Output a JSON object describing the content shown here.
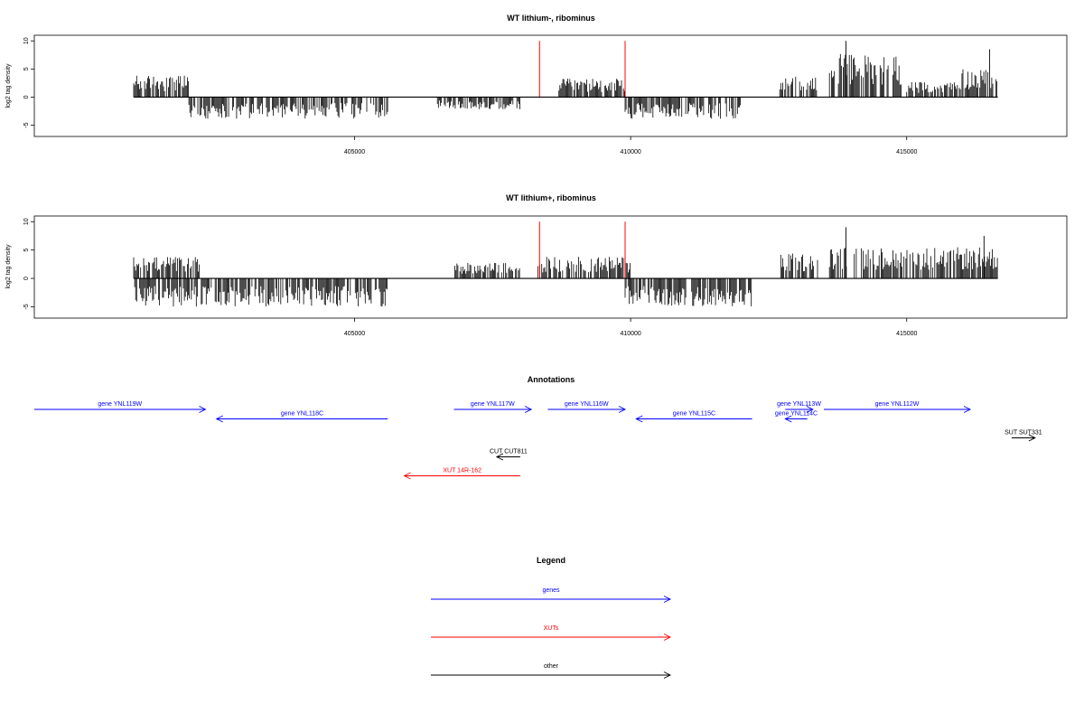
{
  "x_axis": {
    "min": 399200,
    "max": 417900,
    "ticks": [
      405000,
      410000,
      415000
    ],
    "tick_labels": [
      "405000",
      "410000",
      "415000"
    ]
  },
  "chart_data": [
    {
      "type": "bar",
      "title": "WT lithium-, ribominus",
      "ylabel": "log2 tag density",
      "ylim": [
        -7,
        11
      ],
      "yticks": [
        -5,
        0,
        5,
        10
      ],
      "ytick_labels": [
        "-5",
        "0",
        "5",
        "10"
      ],
      "data_range": [
        401000,
        416650
      ],
      "markers": [
        {
          "x": 408350,
          "color": "#ff0000",
          "y": 10
        },
        {
          "x": 409900,
          "color": "#ff0000",
          "y": 10
        }
      ],
      "profile": [
        {
          "start": 401000,
          "end": 402000,
          "amp": 3.5,
          "sign": 1
        },
        {
          "start": 402000,
          "end": 405600,
          "amp": 3.5,
          "sign": -1
        },
        {
          "start": 406500,
          "end": 408000,
          "amp": 2.0,
          "sign": -1
        },
        {
          "start": 408700,
          "end": 409900,
          "amp": 3.0,
          "sign": 1
        },
        {
          "start": 409900,
          "end": 412000,
          "amp": 3.5,
          "sign": -1
        },
        {
          "start": 412700,
          "end": 413400,
          "amp": 3.5,
          "sign": 1
        },
        {
          "start": 413600,
          "end": 414900,
          "amp": 7.0,
          "sign": 1
        },
        {
          "start": 415000,
          "end": 416000,
          "amp": 2.5,
          "sign": 1
        },
        {
          "start": 416000,
          "end": 416650,
          "amp": 4.5,
          "sign": 1
        }
      ],
      "peaks": [
        {
          "x": 413900,
          "y": 10
        },
        {
          "x": 416500,
          "y": 8.5
        }
      ]
    },
    {
      "type": "bar",
      "title": "WT lithium+, ribominus",
      "ylabel": "log2 tag density",
      "ylim": [
        -7,
        11
      ],
      "yticks": [
        -5,
        0,
        5,
        10
      ],
      "ytick_labels": [
        "-5",
        "0",
        "5",
        "10"
      ],
      "data_range": [
        401000,
        416650
      ],
      "markers": [
        {
          "x": 408350,
          "color": "#ff0000",
          "y": 10
        },
        {
          "x": 409900,
          "color": "#ff0000",
          "y": 10
        }
      ],
      "profile": [
        {
          "start": 401000,
          "end": 402200,
          "amp": 3.5,
          "sign": 1
        },
        {
          "start": 401000,
          "end": 405600,
          "amp": 4.5,
          "sign": -1
        },
        {
          "start": 406800,
          "end": 408000,
          "amp": 2.5,
          "sign": 1
        },
        {
          "start": 408300,
          "end": 410000,
          "amp": 3.5,
          "sign": 1
        },
        {
          "start": 409900,
          "end": 412200,
          "amp": 4.5,
          "sign": -1
        },
        {
          "start": 412700,
          "end": 413400,
          "amp": 4.0,
          "sign": 1
        },
        {
          "start": 413600,
          "end": 416650,
          "amp": 5.0,
          "sign": 1
        }
      ],
      "peaks": [
        {
          "x": 413900,
          "y": 9
        },
        {
          "x": 416400,
          "y": 7.5
        }
      ]
    }
  ],
  "annotations": {
    "title": "Annotations",
    "items": [
      {
        "label": "gene YNL119W",
        "start": 399200,
        "end": 402300,
        "dir": "right",
        "row": 0,
        "color": "#0000ff"
      },
      {
        "label": "gene YNL118C",
        "start": 402500,
        "end": 405600,
        "dir": "left",
        "row": 1,
        "color": "#0000ff"
      },
      {
        "label": "gene YNL117W",
        "start": 406800,
        "end": 408200,
        "dir": "right",
        "row": 0,
        "color": "#0000ff"
      },
      {
        "label": "gene YNL116W",
        "start": 408500,
        "end": 409900,
        "dir": "right",
        "row": 0,
        "color": "#0000ff"
      },
      {
        "label": "gene YNL115C",
        "start": 410100,
        "end": 412200,
        "dir": "left",
        "row": 1,
        "color": "#0000ff"
      },
      {
        "label": "gene YNL113W",
        "start": 412800,
        "end": 413300,
        "dir": "right",
        "row": 0,
        "color": "#0000ff"
      },
      {
        "label": "gene YNL114C",
        "start": 412800,
        "end": 413200,
        "dir": "left",
        "row": 1,
        "color": "#0000ff"
      },
      {
        "label": "gene YNL112W",
        "start": 413500,
        "end": 416150,
        "dir": "right",
        "row": 0,
        "color": "#0000ff"
      },
      {
        "label": "SUT SUT331",
        "start": 416900,
        "end": 417200,
        "dir": "right",
        "row": 3,
        "color": "#000000"
      },
      {
        "label": "CUT CUT811",
        "start": 408000,
        "end": 408000,
        "dir": "left",
        "row": 5,
        "color": "#000000"
      },
      {
        "label": "XUT 14R-162",
        "start": 405900,
        "end": 408000,
        "dir": "left",
        "row": 7,
        "color": "#ff0000"
      }
    ]
  },
  "legend": {
    "title": "Legend",
    "items": [
      {
        "label": "genes",
        "color": "#0000ff"
      },
      {
        "label": "XUTs",
        "color": "#ff0000"
      },
      {
        "label": "other",
        "color": "#000000"
      }
    ]
  }
}
